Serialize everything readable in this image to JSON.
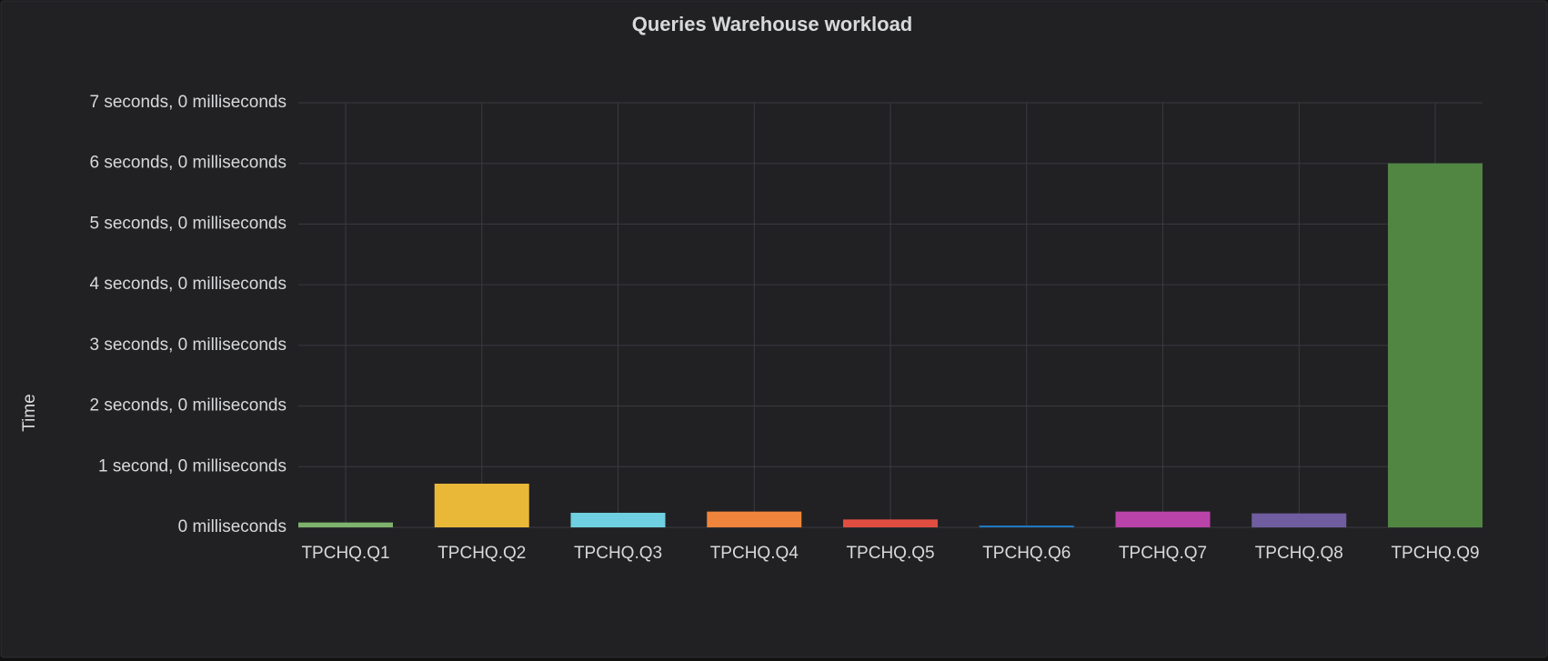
{
  "chart_data": {
    "type": "bar",
    "title": "Queries Warehouse workload",
    "y_label": "Time",
    "categories": [
      "TPCHQ.Q1",
      "TPCHQ.Q2",
      "TPCHQ.Q3",
      "TPCHQ.Q4",
      "TPCHQ.Q5",
      "TPCHQ.Q6",
      "TPCHQ.Q7",
      "TPCHQ.Q8",
      "TPCHQ.Q9"
    ],
    "values": [
      0.08,
      0.72,
      0.24,
      0.26,
      0.13,
      0.03,
      0.26,
      0.23,
      6.0
    ],
    "colors": [
      "#7EB26D",
      "#EAB839",
      "#6ED0E0",
      "#EF843C",
      "#E24D42",
      "#1F78C1",
      "#BA43A9",
      "#705DA0",
      "#508642"
    ],
    "ylim": [
      0,
      7
    ],
    "yticks": [
      {
        "value": 0,
        "label": "0 milliseconds"
      },
      {
        "value": 1,
        "label": "1 second, 0 milliseconds"
      },
      {
        "value": 2,
        "label": "2 seconds, 0 milliseconds"
      },
      {
        "value": 3,
        "label": "3 seconds, 0 milliseconds"
      },
      {
        "value": 4,
        "label": "4 seconds, 0 milliseconds"
      },
      {
        "value": 5,
        "label": "5 seconds, 0 milliseconds"
      },
      {
        "value": 6,
        "label": "6 seconds, 0 milliseconds"
      },
      {
        "value": 7,
        "label": "7 seconds, 0 milliseconds"
      }
    ],
    "grid": true
  }
}
